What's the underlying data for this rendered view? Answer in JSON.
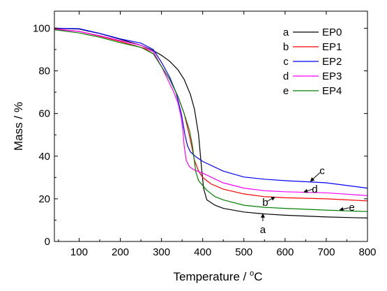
{
  "chart_data": {
    "type": "line",
    "xlabel": "Temperature / °C",
    "xlabel_prefix": "Temperature / ",
    "xlabel_degree": "o",
    "xlabel_unit": "C",
    "ylabel": "Mass / %",
    "xlim": [
      40,
      800
    ],
    "ylim": [
      0,
      108
    ],
    "x_ticks": [
      100,
      200,
      300,
      400,
      500,
      600,
      700,
      800
    ],
    "y_ticks": [
      0,
      20,
      40,
      60,
      80,
      100
    ],
    "grid": false,
    "legend_position": "top-right",
    "series": [
      {
        "key": "a",
        "name": "EP0",
        "color": "#000000",
        "points": [
          [
            40,
            100
          ],
          [
            100,
            99.6
          ],
          [
            150,
            97.5
          ],
          [
            200,
            94.8
          ],
          [
            250,
            92
          ],
          [
            280,
            89.5
          ],
          [
            300,
            87.3
          ],
          [
            320,
            84.5
          ],
          [
            340,
            80.5
          ],
          [
            355,
            76
          ],
          [
            370,
            69
          ],
          [
            380,
            62
          ],
          [
            390,
            50
          ],
          [
            397,
            35
          ],
          [
            402,
            25
          ],
          [
            410,
            19.5
          ],
          [
            430,
            17
          ],
          [
            450,
            15.5
          ],
          [
            500,
            13.8
          ],
          [
            550,
            12.9
          ],
          [
            600,
            12.3
          ],
          [
            700,
            11.5
          ],
          [
            800,
            11
          ]
        ]
      },
      {
        "key": "b",
        "name": "EP1",
        "color": "#ff0000",
        "points": [
          [
            40,
            99.7
          ],
          [
            100,
            98.5
          ],
          [
            150,
            96.3
          ],
          [
            200,
            93.8
          ],
          [
            260,
            90.5
          ],
          [
            280,
            88
          ],
          [
            300,
            82
          ],
          [
            320,
            76
          ],
          [
            340,
            68
          ],
          [
            355,
            60
          ],
          [
            365,
            52
          ],
          [
            373,
            45
          ],
          [
            380,
            38
          ],
          [
            390,
            33
          ],
          [
            400,
            30
          ],
          [
            420,
            27
          ],
          [
            450,
            24.5
          ],
          [
            500,
            22.3
          ],
          [
            550,
            21
          ],
          [
            600,
            20.5
          ],
          [
            700,
            20
          ],
          [
            800,
            19
          ]
        ]
      },
      {
        "key": "c",
        "name": "EP2",
        "color": "#0000ff",
        "points": [
          [
            40,
            100
          ],
          [
            100,
            99.8
          ],
          [
            150,
            97.6
          ],
          [
            200,
            95
          ],
          [
            250,
            93
          ],
          [
            280,
            90
          ],
          [
            300,
            84
          ],
          [
            320,
            77
          ],
          [
            335,
            70
          ],
          [
            348,
            60
          ],
          [
            357,
            50
          ],
          [
            363,
            45
          ],
          [
            370,
            42
          ],
          [
            385,
            39.5
          ],
          [
            400,
            37.5
          ],
          [
            450,
            33
          ],
          [
            500,
            30.2
          ],
          [
            550,
            29.2
          ],
          [
            600,
            28.5
          ],
          [
            650,
            28
          ],
          [
            700,
            27.5
          ],
          [
            800,
            25
          ]
        ]
      },
      {
        "key": "d",
        "name": "EP3",
        "color": "#ff00ff",
        "points": [
          [
            40,
            99.5
          ],
          [
            100,
            98.5
          ],
          [
            150,
            96.5
          ],
          [
            200,
            94.2
          ],
          [
            250,
            92
          ],
          [
            280,
            89
          ],
          [
            300,
            82
          ],
          [
            315,
            76
          ],
          [
            330,
            70
          ],
          [
            340,
            65
          ],
          [
            348,
            58
          ],
          [
            352,
            52
          ],
          [
            355,
            45
          ],
          [
            360,
            38
          ],
          [
            368,
            35
          ],
          [
            380,
            33.5
          ],
          [
            400,
            32
          ],
          [
            450,
            27.5
          ],
          [
            500,
            25
          ],
          [
            550,
            23.8
          ],
          [
            600,
            23.3
          ],
          [
            700,
            22.8
          ],
          [
            800,
            21.5
          ]
        ]
      },
      {
        "key": "e",
        "name": "EP4",
        "color": "#008000",
        "points": [
          [
            40,
            99.3
          ],
          [
            100,
            97.8
          ],
          [
            150,
            95.8
          ],
          [
            200,
            93.2
          ],
          [
            250,
            91
          ],
          [
            280,
            88
          ],
          [
            300,
            82
          ],
          [
            320,
            76
          ],
          [
            340,
            68
          ],
          [
            355,
            60
          ],
          [
            368,
            52
          ],
          [
            375,
            45
          ],
          [
            383,
            33
          ],
          [
            390,
            28.5
          ],
          [
            410,
            24
          ],
          [
            430,
            21
          ],
          [
            450,
            19.5
          ],
          [
            500,
            17
          ],
          [
            550,
            16
          ],
          [
            600,
            15.5
          ],
          [
            700,
            14.7
          ],
          [
            800,
            14
          ]
        ]
      }
    ],
    "annotations": [
      {
        "label": "a",
        "text_at": [
          546,
          5.5
        ],
        "arrow_from": [
          546,
          9.5
        ],
        "arrow_to": [
          546,
          12.8
        ]
      },
      {
        "label": "b",
        "text_at": [
          552,
          18.4
        ],
        "arrow_from": [
          556,
          18.8
        ],
        "arrow_to": [
          575,
          20.8
        ]
      },
      {
        "label": "c",
        "text_at": [
          690,
          33.2
        ],
        "arrow_from": [
          685,
          32.3
        ],
        "arrow_to": [
          662,
          28.3
        ]
      },
      {
        "label": "d",
        "text_at": [
          672,
          24.6
        ],
        "arrow_from": [
          668,
          24.6
        ],
        "arrow_to": [
          646,
          23.2
        ]
      },
      {
        "label": "e",
        "text_at": [
          762,
          16
        ],
        "arrow_from": [
          755,
          15.8
        ],
        "arrow_to": [
          733,
          14.8
        ]
      }
    ]
  }
}
